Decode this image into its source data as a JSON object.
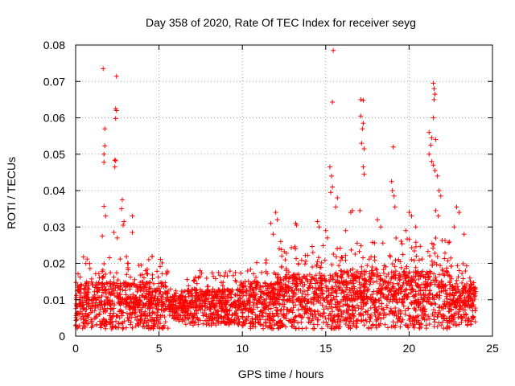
{
  "chart_data": {
    "type": "scatter",
    "title": "Day 358 of 2020, Rate Of TEC Index for receiver seyg",
    "xlabel": "GPS time / hours",
    "ylabel": "ROTI / TECUs",
    "xlim": [
      0,
      25
    ],
    "ylim": [
      0,
      0.08
    ],
    "xticks": [
      0,
      5,
      10,
      15,
      20,
      25
    ],
    "xtick_labels": [
      "0",
      "5",
      "10",
      "15",
      "20",
      "25"
    ],
    "yticks": [
      0,
      0.01,
      0.02,
      0.03,
      0.04,
      0.05,
      0.06,
      0.07,
      0.08
    ],
    "ytick_labels": [
      "0",
      "0.01",
      "0.02",
      "0.03",
      "0.04",
      "0.05",
      "0.06",
      "0.07",
      "0.08"
    ],
    "grid": true,
    "marker": "+",
    "color": "#ff0000",
    "series": [
      {
        "name": "ROTI",
        "points": [
          [
            1.65,
            0.0735
          ],
          [
            2.45,
            0.0714
          ],
          [
            2.4,
            0.0625
          ],
          [
            2.45,
            0.062
          ],
          [
            2.4,
            0.0598
          ],
          [
            1.75,
            0.057
          ],
          [
            1.75,
            0.0523
          ],
          [
            1.7,
            0.05
          ],
          [
            2.35,
            0.0484
          ],
          [
            2.4,
            0.0482
          ],
          [
            1.7,
            0.0478
          ],
          [
            2.35,
            0.0465
          ],
          [
            1.7,
            0.0357
          ],
          [
            2.8,
            0.0375
          ],
          [
            2.75,
            0.035
          ],
          [
            1.8,
            0.033
          ],
          [
            3.4,
            0.033
          ],
          [
            2.9,
            0.0315
          ],
          [
            2.85,
            0.0305
          ],
          [
            2.3,
            0.0285
          ],
          [
            3.4,
            0.0285
          ],
          [
            2.5,
            0.027
          ],
          [
            1.6,
            0.0275
          ],
          [
            15.45,
            0.0785
          ],
          [
            15.4,
            0.0643
          ],
          [
            17.1,
            0.065
          ],
          [
            17.25,
            0.0648
          ],
          [
            17.1,
            0.0605
          ],
          [
            17.25,
            0.0585
          ],
          [
            17.2,
            0.057
          ],
          [
            17.15,
            0.053
          ],
          [
            17.3,
            0.0515
          ],
          [
            17.25,
            0.0465
          ],
          [
            17.3,
            0.0445
          ],
          [
            15.25,
            0.0465
          ],
          [
            15.35,
            0.044
          ],
          [
            15.4,
            0.041
          ],
          [
            15.3,
            0.0395
          ],
          [
            15.7,
            0.038
          ],
          [
            15.6,
            0.0355
          ],
          [
            16.6,
            0.0345
          ],
          [
            16.5,
            0.034
          ],
          [
            17.05,
            0.0345
          ],
          [
            19.05,
            0.052
          ],
          [
            18.95,
            0.0425
          ],
          [
            19.0,
            0.04
          ],
          [
            19.1,
            0.0385
          ],
          [
            19.15,
            0.0355
          ],
          [
            21.45,
            0.0695
          ],
          [
            21.5,
            0.068
          ],
          [
            21.55,
            0.0665
          ],
          [
            21.5,
            0.065
          ],
          [
            21.45,
            0.06
          ],
          [
            21.2,
            0.056
          ],
          [
            21.35,
            0.0545
          ],
          [
            21.3,
            0.0525
          ],
          [
            21.6,
            0.054
          ],
          [
            21.2,
            0.05
          ],
          [
            21.35,
            0.048
          ],
          [
            21.45,
            0.047
          ],
          [
            21.55,
            0.0455
          ],
          [
            21.7,
            0.044
          ],
          [
            21.8,
            0.04
          ],
          [
            21.9,
            0.0385
          ],
          [
            21.6,
            0.0345
          ],
          [
            21.75,
            0.033
          ],
          [
            22.85,
            0.0355
          ],
          [
            23.0,
            0.034
          ],
          [
            20.0,
            0.034
          ],
          [
            20.15,
            0.033
          ],
          [
            12.0,
            0.034
          ],
          [
            12.1,
            0.032
          ],
          [
            11.7,
            0.031
          ],
          [
            13.2,
            0.031
          ],
          [
            13.25,
            0.0305
          ],
          [
            14.5,
            0.0315
          ],
          [
            14.6,
            0.03
          ],
          [
            16.2,
            0.029
          ],
          [
            18.1,
            0.032
          ],
          [
            18.3,
            0.03
          ],
          [
            19.8,
            0.029
          ],
          [
            20.4,
            0.03
          ],
          [
            22.7,
            0.03
          ],
          [
            23.3,
            0.028
          ],
          [
            15.0,
            0.029
          ],
          [
            15.1,
            0.027
          ],
          [
            11.85,
            0.028
          ],
          [
            12.3,
            0.026
          ]
        ]
      }
    ],
    "dense_regions": [
      {
        "x": [
          0.0,
          5.55
        ],
        "y": [
          0.002,
          0.022
        ],
        "center": 0.0085
      },
      {
        "x": [
          5.55,
          6.6
        ],
        "y": [
          0.004,
          0.013
        ],
        "center": 0.0075
      },
      {
        "x": [
          6.6,
          10.0
        ],
        "y": [
          0.003,
          0.018
        ],
        "center": 0.008
      },
      {
        "x": [
          10.0,
          12.0
        ],
        "y": [
          0.002,
          0.021
        ],
        "center": 0.0085
      },
      {
        "x": [
          12.0,
          16.0
        ],
        "y": [
          0.002,
          0.025
        ],
        "center": 0.0095
      },
      {
        "x": [
          16.0,
          19.0
        ],
        "y": [
          0.002,
          0.026
        ],
        "center": 0.01
      },
      {
        "x": [
          19.0,
          22.5
        ],
        "y": [
          0.002,
          0.027
        ],
        "center": 0.01
      },
      {
        "x": [
          22.5,
          24.0
        ],
        "y": [
          0.003,
          0.02
        ],
        "center": 0.0085
      }
    ]
  }
}
